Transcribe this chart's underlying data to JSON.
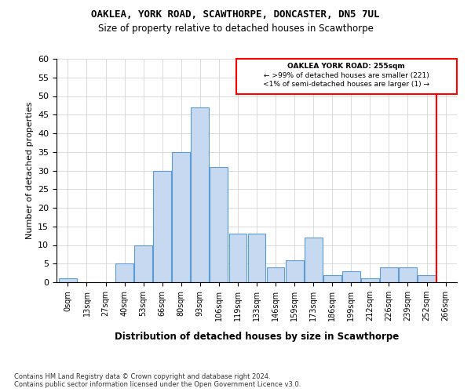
{
  "title1": "OAKLEA, YORK ROAD, SCAWTHORPE, DONCASTER, DN5 7UL",
  "title2": "Size of property relative to detached houses in Scawthorpe",
  "xlabel": "Distribution of detached houses by size in Scawthorpe",
  "ylabel": "Number of detached properties",
  "footnote": "Contains HM Land Registry data © Crown copyright and database right 2024.\nContains public sector information licensed under the Open Government Licence v3.0.",
  "bin_labels": [
    "0sqm",
    "13sqm",
    "27sqm",
    "40sqm",
    "53sqm",
    "66sqm",
    "80sqm",
    "93sqm",
    "106sqm",
    "119sqm",
    "133sqm",
    "146sqm",
    "159sqm",
    "173sqm",
    "186sqm",
    "199sqm",
    "212sqm",
    "226sqm",
    "239sqm",
    "252sqm",
    "266sqm"
  ],
  "bar_heights": [
    1,
    0,
    0,
    5,
    10,
    30,
    35,
    47,
    31,
    13,
    13,
    4,
    6,
    12,
    2,
    3,
    1,
    4,
    4,
    2,
    0
  ],
  "bar_color": "#c6d9f0",
  "bar_edge_color": "#5b9bd5",
  "vline_color": "red",
  "box_text_line1": "OAKLEA YORK ROAD: 255sqm",
  "box_text_line2": "← >99% of detached houses are smaller (221)",
  "box_text_line3": "<1% of semi-detached houses are larger (1) →",
  "box_color": "red",
  "ylim": [
    0,
    60
  ],
  "yticks": [
    0,
    5,
    10,
    15,
    20,
    25,
    30,
    35,
    40,
    45,
    50,
    55,
    60
  ],
  "background_color": "#ffffff",
  "grid_color": "#cccccc"
}
